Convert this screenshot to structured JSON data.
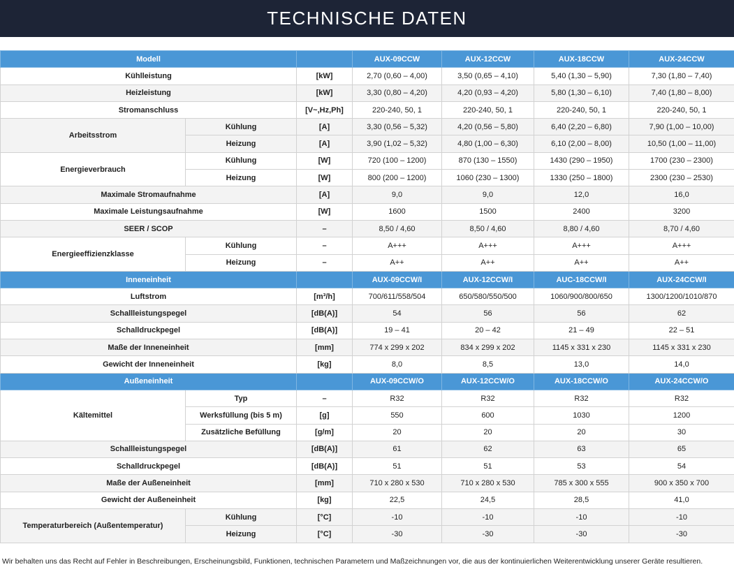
{
  "header": {
    "title": "TECHNISCHE DATEN"
  },
  "sections": [
    {
      "label": "Modell",
      "models": [
        "AUX-09CCW",
        "AUX-12CCW",
        "AUX-18CCW",
        "AUX-24CCW"
      ],
      "rows": [
        {
          "label": "Kühlleistung",
          "unit": "[kW]",
          "values": [
            "2,70 (0,60 – 4,00)",
            "3,50 (0,65 – 4,10)",
            "5,40 (1,30 – 5,90)",
            "7,30 (1,80 – 7,40)"
          ]
        },
        {
          "label": "Heizleistung",
          "unit": "[kW]",
          "values": [
            "3,30 (0,80 – 4,20)",
            "4,20 (0,93 – 4,20)",
            "5,80 (1,30 – 6,10)",
            "7,40 (1,80 – 8,00)"
          ]
        },
        {
          "label": "Stromanschluss",
          "unit": "[V~,Hz,Ph]",
          "values": [
            "220-240, 50, 1",
            "220-240, 50, 1",
            "220-240, 50, 1",
            "220-240, 50, 1"
          ]
        },
        {
          "label": "Arbeitsstrom",
          "subrows": [
            {
              "sub": "Kühlung",
              "unit": "[A]",
              "values": [
                "3,30 (0,56 – 5,32)",
                "4,20 (0,56 – 5,80)",
                "6,40 (2,20 – 6,80)",
                "7,90 (1,00 – 10,00)"
              ]
            },
            {
              "sub": "Heizung",
              "unit": "[A]",
              "values": [
                "3,90 (1,02 – 5,32)",
                "4,80 (1,00 – 6,30)",
                "6,10 (2,00 – 8,00)",
                "10,50 (1,00 – 11,00)"
              ]
            }
          ]
        },
        {
          "label": "Energieverbrauch",
          "subrows": [
            {
              "sub": "Kühlung",
              "unit": "[W]",
              "values": [
                "720 (100 – 1200)",
                "870 (130 – 1550)",
                "1430 (290 – 1950)",
                "1700 (230 – 2300)"
              ]
            },
            {
              "sub": "Heizung",
              "unit": "[W]",
              "values": [
                "800 (200 – 1200)",
                "1060 (230 – 1300)",
                "1330 (250 – 1800)",
                "2300 (230 – 2530)"
              ]
            }
          ]
        },
        {
          "label": "Maximale Stromaufnahme",
          "unit": "[A]",
          "values": [
            "9,0",
            "9,0",
            "12,0",
            "16,0"
          ]
        },
        {
          "label": "Maximale Leistungsaufnahme",
          "unit": "[W]",
          "values": [
            "1600",
            "1500",
            "2400",
            "3200"
          ]
        },
        {
          "label": "SEER / SCOP",
          "unit": "–",
          "values": [
            "8,50 / 4,60",
            "8,50 / 4,60",
            "8,80 / 4,60",
            "8,70 / 4,60"
          ]
        },
        {
          "label": "Energieeffizienzklasse",
          "subrows": [
            {
              "sub": "Kühlung",
              "unit": "–",
              "values": [
                "A+++",
                "A+++",
                "A+++",
                "A+++"
              ]
            },
            {
              "sub": "Heizung",
              "unit": "–",
              "values": [
                "A++",
                "A++",
                "A++",
                "A++"
              ]
            }
          ]
        }
      ]
    },
    {
      "label": "Inneneinheit",
      "models": [
        "AUX-09CCW/I",
        "AUX-12CCW/I",
        "AUC-18CCW/I",
        "AUX-24CCW/I"
      ],
      "rows": [
        {
          "label": "Luftstrom",
          "unit": "[m³/h]",
          "values": [
            "700/611/558/504",
            "650/580/550/500",
            "1060/900/800/650",
            "1300/1200/1010/870"
          ]
        },
        {
          "label": "Schallleistungspegel",
          "unit": "[dB(A)]",
          "values": [
            "54",
            "56",
            "56",
            "62"
          ]
        },
        {
          "label": "Schalldruckpegel",
          "unit": "[dB(A)]",
          "values": [
            "19 – 41",
            "20 – 42",
            "21 – 49",
            "22 – 51"
          ]
        },
        {
          "label": "Maße der Inneneinheit",
          "unit": "[mm]",
          "values": [
            "774 x 299 x 202",
            "834 x 299 x 202",
            "1145 x 331 x 230",
            "1145 x 331 x 230"
          ]
        },
        {
          "label": "Gewicht der Inneneinheit",
          "unit": "[kg]",
          "values": [
            "8,0",
            "8,5",
            "13,0",
            "14,0"
          ]
        }
      ]
    },
    {
      "label": "Außeneinheit",
      "models": [
        "AUX-09CCW/O",
        "AUX-12CCW/O",
        "AUX-18CCW/O",
        "AUX-24CCW/O"
      ],
      "rows": [
        {
          "label": "Kältemittel",
          "subrows": [
            {
              "sub": "Typ",
              "unit": "–",
              "values": [
                "R32",
                "R32",
                "R32",
                "R32"
              ]
            },
            {
              "sub": "Werksfüllung (bis 5 m)",
              "unit": "[g]",
              "values": [
                "550",
                "600",
                "1030",
                "1200"
              ]
            },
            {
              "sub": "Zusätzliche Befüllung",
              "unit": "[g/m]",
              "values": [
                "20",
                "20",
                "20",
                "30"
              ]
            }
          ]
        },
        {
          "label": "Schallleistungspegel",
          "unit": "[dB(A)]",
          "values": [
            "61",
            "62",
            "63",
            "65"
          ]
        },
        {
          "label": "Schalldruckpegel",
          "unit": "[dB(A)]",
          "values": [
            "51",
            "51",
            "53",
            "54"
          ]
        },
        {
          "label": "Maße der Außeneinheit",
          "unit": "[mm]",
          "values": [
            "710 x 280 x 530",
            "710 x 280 x 530",
            "785 x 300 x 555",
            "900 x 350 x 700"
          ]
        },
        {
          "label": "Gewicht der Außeneinheit",
          "unit": "[kg]",
          "values": [
            "22,5",
            "24,5",
            "28,5",
            "41,0"
          ]
        },
        {
          "label": "Temperaturbereich (Außentemperatur)",
          "subrows": [
            {
              "sub": "Kühlung",
              "unit": "[°C]",
              "values": [
                "-10",
                "-10",
                "-10",
                "-10"
              ]
            },
            {
              "sub": "Heizung",
              "unit": "[°C]",
              "values": [
                "-30",
                "-30",
                "-30",
                "-30"
              ]
            }
          ]
        }
      ]
    }
  ],
  "footer": {
    "text": "Wir behalten uns das Recht auf Fehler in Beschreibungen, Erscheinungsbild, Funktionen, technischen Parametern und Maßzeichnungen vor, die aus der kontinuierlichen Weiterentwicklung unserer Geräte resultieren."
  },
  "colors": {
    "title_bar": "#1d2436",
    "section_header": "#4a97d6",
    "row_alt": "#f3f3f3"
  }
}
